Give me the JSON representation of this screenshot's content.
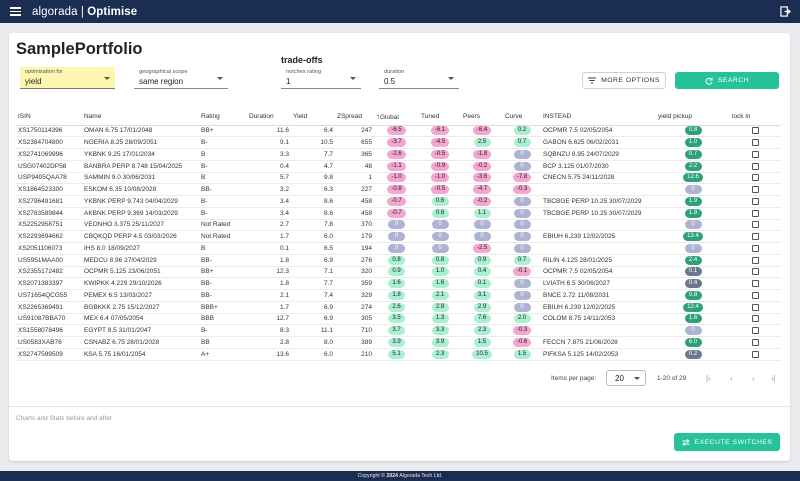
{
  "app": {
    "brand_light": "algorada",
    "brand_sep": " | ",
    "brand_bold": "Optimise"
  },
  "page": {
    "title": "SamplePortfolio",
    "section": "trade-offs"
  },
  "controls": {
    "optimisation": {
      "label": "optimisation for",
      "value": "yield"
    },
    "scope": {
      "label": "geographical scope",
      "value": "same region"
    },
    "notches": {
      "label": "notches rating",
      "value": "1"
    },
    "duration": {
      "label": "duration",
      "value": "0.5"
    },
    "more_options": "MORE OPTIONS",
    "search": "SEARCH"
  },
  "table": {
    "headers": [
      "ISIN",
      "Name",
      "Rating",
      "Duration",
      "Yield",
      "ZSpread",
      "Global",
      "Tuned",
      "Peers",
      "Curve",
      "INSTEAD",
      "yield pickup",
      "lock in"
    ],
    "rows": [
      [
        "XS1750114396",
        "OMAN 6.75 17/01/2048",
        "BB+",
        "11.6",
        "6.4",
        "247",
        "-6.5",
        "-6.1",
        "-6.4",
        "0.2",
        "OCPMR 7.5 02/05/2054",
        "0.8"
      ],
      [
        "XS2384704800",
        "NGERIA 8.25 28/09/2051",
        "B-",
        "9.1",
        "10.5",
        "655",
        "-3.7",
        "-4.5",
        "2.5",
        "0.7",
        "GABON 6.625 06/02/2031",
        "1.0"
      ],
      [
        "XS2741069996",
        "YKBNK 9.25 17/01/2034",
        "B",
        "3.3",
        "7.7",
        "365",
        "-2.6",
        "-0.5",
        "-1.8",
        "0",
        "SQBNZU 8.95 24/07/2029",
        "0.7"
      ],
      [
        "USG07402DP58",
        "BANBRA PERP 8.748 15/04/2025",
        "B-",
        "0.4",
        "4.7",
        "48",
        "-1.1",
        "-0.9",
        "-0.2",
        "0",
        "BCP 3.125 01/07/2030",
        "2.2"
      ],
      [
        "USP9405QAA78",
        "SAMMIN 9.0 30/06/2031",
        "B",
        "5.7",
        "9.8",
        "1",
        "-1.0",
        "-1.0",
        "-3.6",
        "-7.8",
        "CNECN 5.75 24/11/2028",
        "12.6"
      ],
      [
        "XS1864523300",
        "ESKOM 6.35 10/08/2028",
        "BB-",
        "3.2",
        "6.3",
        "227",
        "-0.8",
        "-0.5",
        "-4.7",
        "-0.3",
        "",
        "0"
      ],
      [
        "XS2796491681",
        "YKBNK PERP 9.743 04/04/2029",
        "B-",
        "3.4",
        "8.6",
        "458",
        "-0.7",
        "0.6",
        "-0.2",
        "0",
        "TBCBGE PERP 10.25 30/07/2029",
        "1.9"
      ],
      [
        "XS2783589844",
        "AKBNK PERP 9.369 14/03/2029",
        "B-",
        "3.4",
        "8.6",
        "458",
        "-0.7",
        "0.6",
        "1.1",
        "0",
        "TBCBGE PERP 10.25 30/07/2029",
        "1.9"
      ],
      [
        "XS2252958751",
        "VEONHO 3.375 25/11/2027",
        "Not Rated",
        "2.7",
        "7.8",
        "370",
        "0",
        "0",
        "0",
        "0",
        "",
        "0"
      ],
      [
        "XS2293694662",
        "CBQKQD PERP 4.5 03/03/2026",
        "Not Rated",
        "1.7",
        "6.0",
        "179",
        "0",
        "0",
        "0",
        "0",
        "EBIUH 6.239 12/02/2025",
        "13.4"
      ],
      [
        "XS2051106073",
        "IHS 8.0 18/09/2027",
        "B",
        "0.1",
        "6.5",
        "194",
        "0",
        "0",
        "-2.5",
        "0",
        "",
        "0"
      ],
      [
        "US5951MAA00",
        "MEDCU 8.96 27/04/2029",
        "BB-",
        "1.8",
        "6.9",
        "276",
        "0.8",
        "0.8",
        "0.9",
        "0.7",
        "RILIN 4.125 28/01/2025",
        "2.4"
      ],
      [
        "XS2355172482",
        "OCPMR 5.125 23/06/2051",
        "BB+",
        "12.3",
        "7.1",
        "320",
        "0.9",
        "1.0",
        "0.4",
        "-0.1",
        "OCPMR 7.5 02/05/2054",
        "0.1"
      ],
      [
        "XS2071383397",
        "KWIPKK 4.229 29/10/2026",
        "BB-",
        "1.8",
        "7.7",
        "359",
        "1.6",
        "1.6",
        "0.1",
        "0",
        "LVIATH 6.5 30/06/2027",
        "0.4"
      ],
      [
        "US71654QCG55",
        "PEMEX 6.5 13/03/2027",
        "BB-",
        "2.1",
        "7.4",
        "329",
        "1.8",
        "2.1",
        "3.1",
        "0",
        "BNCE 2.72 11/08/2031",
        "0.8"
      ],
      [
        "XS2265369491",
        "BGBKKK 2.75 15/12/2027",
        "BBB+",
        "1.7",
        "6.9",
        "274",
        "2.6",
        "2.8",
        "2.9",
        "0",
        "EBIUH 6.239 12/02/2025",
        "12.4"
      ],
      [
        "US91087BBA70",
        "MEX 6.4 07/05/2054",
        "BBB",
        "12.7",
        "6.9",
        "305",
        "3.5",
        "1.3",
        "7.6",
        "2.0",
        "COLOM 8.75 14/11/2053",
        "1.6"
      ],
      [
        "XS1558078496",
        "EGYPT 8.5 31/01/2047",
        "B-",
        "8.3",
        "11.1",
        "710",
        "3.7",
        "3.3",
        "2.3",
        "-0.3",
        "",
        "0"
      ],
      [
        "US0583XAB76",
        "CSNABZ 6.75 28/01/2028",
        "BB",
        "2.8",
        "8.0",
        "389",
        "3.9",
        "3.9",
        "1.5",
        "-0.6",
        "FECCN 7.875 21/06/2028",
        "6.0"
      ],
      [
        "XS2747599509",
        "KSA 5.75 16/01/2054",
        "A+",
        "13.6",
        "6.0",
        "210",
        "5.1",
        "2.3",
        "10.5",
        "1.5",
        "PIFKSA 5.125 14/02/2053",
        "0.2"
      ]
    ]
  },
  "pagination": {
    "label": "Items per page:",
    "per_page": "20",
    "range": "1-20 of 29"
  },
  "charts_label": "Charts and Stats before and after",
  "execute": "EXECUTE SWITCHES",
  "footer": {
    "prefix": "Copyright © ",
    "year": "2024",
    "suffix": " Algorada Tech Ltd."
  },
  "colors": {
    "navy": "#1c2d52",
    "accent": "#26c39a",
    "negative": "#f4a6d0",
    "positive": "#a9f0d3",
    "neutral": "#aeb3d4",
    "pickup": "#2ea07a"
  }
}
